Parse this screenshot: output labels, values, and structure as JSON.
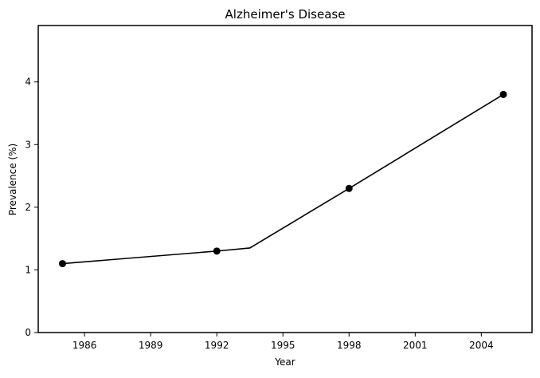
{
  "chart_data": {
    "type": "line",
    "title": "Alzheimer's Disease",
    "xlabel": "Year",
    "ylabel": "Prevalence (%)",
    "x_ticks": [
      1986,
      1989,
      1992,
      1995,
      1998,
      2001,
      2004
    ],
    "y_ticks": [
      0,
      1,
      2,
      3,
      4
    ],
    "xlim": [
      1983.9,
      2006.3
    ],
    "ylim": [
      0,
      4.9
    ],
    "grid": false,
    "legend": "none",
    "series": [
      {
        "x": [
          1985,
          1992,
          1993.5,
          1998,
          2005
        ],
        "y": [
          1.1,
          1.3,
          1.35,
          2.3,
          3.8
        ],
        "markers": [
          1985,
          1992,
          1998,
          2005
        ],
        "color": "#000000"
      }
    ]
  }
}
